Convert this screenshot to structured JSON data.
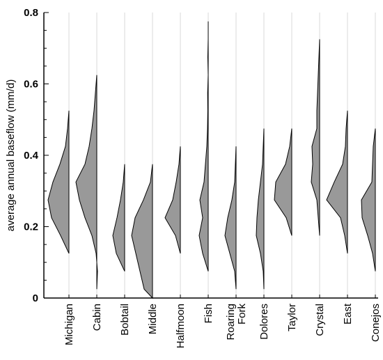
{
  "chart_data": {
    "type": "violin",
    "title": "",
    "xlabel": "",
    "ylabel": "average annual baseflow (mm/d)",
    "ylim": [
      0,
      0.8
    ],
    "yticks": [
      0,
      0.2,
      0.4,
      0.6,
      0.8
    ],
    "ytick_labels": [
      "0",
      "0.2",
      "0.4",
      "0.6",
      "0.8"
    ],
    "grid": "vertical lines at categories",
    "fill_color": "#999999",
    "edge_color": "#000000",
    "grid_color": "#d9d9d9",
    "categories": [
      {
        "name": "Michigan",
        "label_lines": [
          "Michigan"
        ],
        "profile": [
          [
            0.125,
            0
          ],
          [
            0.175,
            -0.6
          ],
          [
            0.225,
            -1.25
          ],
          [
            0.275,
            -1.5
          ],
          [
            0.325,
            -1.15
          ],
          [
            0.375,
            -0.65
          ],
          [
            0.425,
            -0.25
          ],
          [
            0.475,
            -0.1
          ],
          [
            0.525,
            0
          ]
        ]
      },
      {
        "name": "Cabin",
        "label_lines": [
          "Cabin"
        ],
        "profile": [
          [
            0.025,
            0
          ],
          [
            0.075,
            0.05
          ],
          [
            0.125,
            -0.05
          ],
          [
            0.175,
            -0.35
          ],
          [
            0.225,
            -0.85
          ],
          [
            0.275,
            -1.25
          ],
          [
            0.325,
            -1.5
          ],
          [
            0.375,
            -0.85
          ],
          [
            0.425,
            -0.55
          ],
          [
            0.475,
            -0.35
          ],
          [
            0.525,
            -0.2
          ],
          [
            0.575,
            -0.1
          ],
          [
            0.625,
            0
          ]
        ]
      },
      {
        "name": "Bobtail",
        "label_lines": [
          "Bobtail"
        ],
        "profile": [
          [
            0.075,
            0
          ],
          [
            0.125,
            -0.6
          ],
          [
            0.175,
            -0.85
          ],
          [
            0.225,
            -0.55
          ],
          [
            0.275,
            -0.3
          ],
          [
            0.325,
            -0.1
          ],
          [
            0.375,
            0
          ]
        ]
      },
      {
        "name": "Middle",
        "label_lines": [
          "Middle"
        ],
        "profile": [
          [
            0,
            0
          ],
          [
            0.025,
            -0.6
          ],
          [
            0.075,
            -0.9
          ],
          [
            0.125,
            -1.2
          ],
          [
            0.175,
            -1.5
          ],
          [
            0.225,
            -1.25
          ],
          [
            0.275,
            -0.65
          ],
          [
            0.325,
            -0.15
          ],
          [
            0.375,
            0
          ]
        ]
      },
      {
        "name": "Halfmoon",
        "label_lines": [
          "Halfmoon"
        ],
        "profile": [
          [
            0.125,
            0
          ],
          [
            0.175,
            -0.35
          ],
          [
            0.225,
            -1.1
          ],
          [
            0.275,
            -0.55
          ],
          [
            0.325,
            -0.3
          ],
          [
            0.375,
            -0.1
          ],
          [
            0.425,
            0
          ]
        ]
      },
      {
        "name": "Fish",
        "label_lines": [
          "Fish"
        ],
        "profile": [
          [
            0.075,
            0
          ],
          [
            0.125,
            -0.4
          ],
          [
            0.175,
            -0.65
          ],
          [
            0.225,
            -0.4
          ],
          [
            0.275,
            -0.6
          ],
          [
            0.325,
            -0.3
          ],
          [
            0.375,
            -0.2
          ],
          [
            0.425,
            -0.1
          ],
          [
            0.475,
            -0.05
          ],
          [
            0.525,
            -0.03
          ],
          [
            0.575,
            -0.04
          ],
          [
            0.625,
            0.0
          ],
          [
            0.675,
            -0.03
          ],
          [
            0.725,
            0.0
          ],
          [
            0.775,
            0
          ]
        ]
      },
      {
        "name": "Roaring Fork",
        "label_lines": [
          "Roaring",
          "Fork"
        ],
        "profile": [
          [
            0.025,
            0
          ],
          [
            0.075,
            -0.1
          ],
          [
            0.125,
            -0.45
          ],
          [
            0.175,
            -0.8
          ],
          [
            0.225,
            -0.6
          ],
          [
            0.275,
            -0.3
          ],
          [
            0.325,
            -0.1
          ],
          [
            0.375,
            -0.05
          ],
          [
            0.425,
            0
          ]
        ]
      },
      {
        "name": "Dolores",
        "label_lines": [
          "Dolores"
        ],
        "profile": [
          [
            0.025,
            0
          ],
          [
            0.075,
            -0.05
          ],
          [
            0.125,
            -0.25
          ],
          [
            0.175,
            -0.55
          ],
          [
            0.225,
            -0.5
          ],
          [
            0.275,
            -0.4
          ],
          [
            0.325,
            -0.25
          ],
          [
            0.375,
            -0.1
          ],
          [
            0.425,
            -0.05
          ],
          [
            0.475,
            0
          ]
        ]
      },
      {
        "name": "Taylor",
        "label_lines": [
          "Taylor"
        ],
        "profile": [
          [
            0.175,
            0
          ],
          [
            0.225,
            -0.4
          ],
          [
            0.275,
            -1.25
          ],
          [
            0.325,
            -1.15
          ],
          [
            0.375,
            -0.45
          ],
          [
            0.425,
            -0.15
          ],
          [
            0.475,
            0
          ]
        ]
      },
      {
        "name": "Crystal",
        "label_lines": [
          "Crystal"
        ],
        "profile": [
          [
            0.175,
            0
          ],
          [
            0.225,
            -0.1
          ],
          [
            0.275,
            -0.2
          ],
          [
            0.325,
            -0.6
          ],
          [
            0.375,
            -0.5
          ],
          [
            0.425,
            -0.55
          ],
          [
            0.475,
            -0.2
          ],
          [
            0.525,
            -0.2
          ],
          [
            0.575,
            -0.15
          ],
          [
            0.625,
            -0.1
          ],
          [
            0.675,
            -0.05
          ],
          [
            0.725,
            0
          ]
        ]
      },
      {
        "name": "East",
        "label_lines": [
          "East"
        ],
        "profile": [
          [
            0.125,
            0
          ],
          [
            0.175,
            -0.2
          ],
          [
            0.225,
            -0.5
          ],
          [
            0.275,
            -1.5
          ],
          [
            0.325,
            -0.95
          ],
          [
            0.375,
            -0.35
          ],
          [
            0.425,
            -0.15
          ],
          [
            0.475,
            -0.1
          ],
          [
            0.525,
            0
          ]
        ]
      },
      {
        "name": "Conejos",
        "label_lines": [
          "Conejos"
        ],
        "profile": [
          [
            0.075,
            0
          ],
          [
            0.125,
            -0.2
          ],
          [
            0.175,
            -0.55
          ],
          [
            0.225,
            -0.95
          ],
          [
            0.275,
            -1.0
          ],
          [
            0.325,
            -0.25
          ],
          [
            0.375,
            -0.2
          ],
          [
            0.425,
            -0.15
          ],
          [
            0.475,
            0
          ]
        ]
      }
    ]
  }
}
